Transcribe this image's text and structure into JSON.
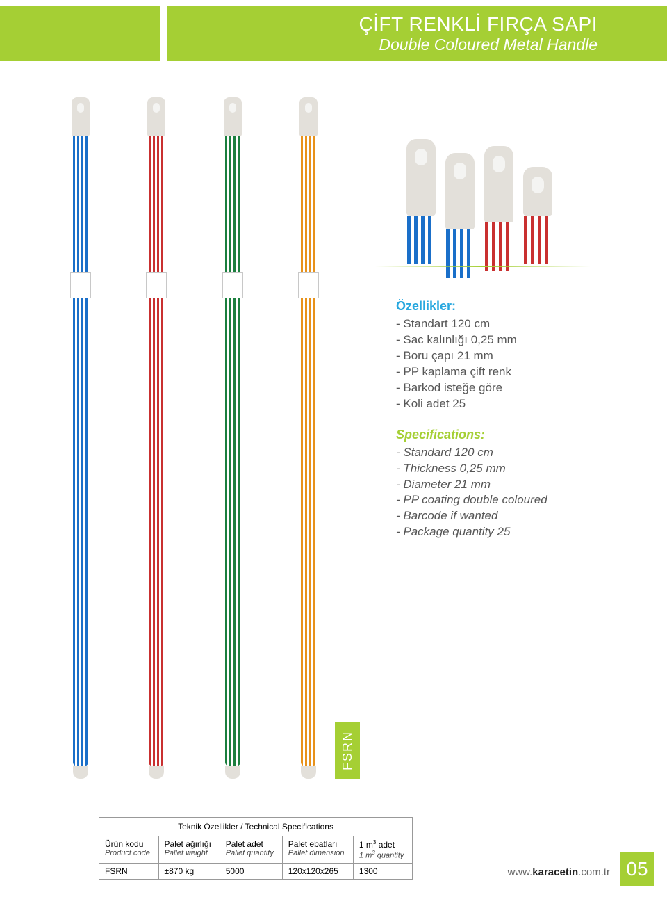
{
  "header": {
    "title_tr": "ÇİFT RENKLİ FIRÇA SAPI",
    "title_en": "Double Coloured Metal Handle",
    "banner_color": "#a5cf34"
  },
  "product_handles": {
    "colors": [
      "blue",
      "red",
      "green",
      "orange"
    ]
  },
  "closeup_handles": {
    "colors": [
      "blue",
      "blue",
      "red",
      "red"
    ]
  },
  "specs_tr": {
    "heading": "Özellikler:",
    "items": [
      "- Standart 120 cm",
      "- Sac kalınlığı 0,25 mm",
      "- Boru çapı 21 mm",
      "- PP kaplama çift renk",
      "- Barkod isteğe göre",
      "- Koli adet 25"
    ]
  },
  "specs_en": {
    "heading": "Specifications:",
    "items": [
      "- Standard 120 cm",
      "- Thickness 0,25 mm",
      "- Diameter 21 mm",
      "- PP coating double coloured",
      "- Barcode if wanted",
      "- Package quantity 25"
    ]
  },
  "product_code_tab": "FSRN",
  "tech_table": {
    "title": "Teknik Özellikler / Technical Specifications",
    "columns": [
      {
        "tr": "Ürün kodu",
        "en": "Product code"
      },
      {
        "tr": "Palet ağırlığı",
        "en": "Pallet weight"
      },
      {
        "tr": "Palet adet",
        "en": "Pallet quantity"
      },
      {
        "tr": "Palet ebatları",
        "en": "Pallet dimension"
      },
      {
        "tr": "1 m³ adet",
        "en": "1 m³ quantity"
      }
    ],
    "row": [
      "FSRN",
      "±870 kg",
      "5000",
      "120x120x265",
      "1300"
    ]
  },
  "footer": {
    "url_prefix": "www.",
    "url_bold": "karacetin",
    "url_suffix": ".com.tr",
    "page_number": "05"
  },
  "colors": {
    "accent_green": "#a5cf34",
    "accent_blue": "#29a8df",
    "handle_blue": "#1a6fc9",
    "handle_red": "#c93030",
    "handle_green": "#1b7f3e",
    "handle_orange": "#e8921a"
  }
}
